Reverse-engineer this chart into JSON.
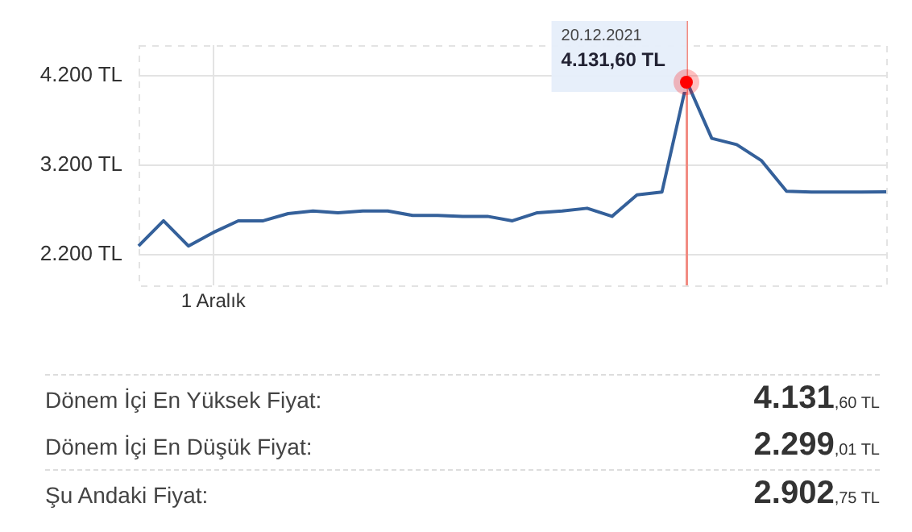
{
  "chart_data": {
    "type": "line",
    "categories": [
      null,
      null,
      null,
      "1 Aralık",
      null,
      null,
      null,
      null,
      null,
      null,
      null,
      null,
      null,
      null,
      null,
      null,
      null,
      null,
      null,
      null,
      null,
      null,
      null,
      null,
      null,
      null,
      null,
      null,
      null,
      null,
      null
    ],
    "series": [
      {
        "color": "#34609a",
        "values": [
          2300,
          2580,
          2299.01,
          2450,
          2580,
          2580,
          2660,
          2690,
          2670,
          2690,
          2690,
          2640,
          2640,
          2630,
          2630,
          2580,
          2670,
          2690,
          2720,
          2630,
          2870,
          2900,
          4131.6,
          3500,
          3430,
          3250,
          2910,
          2900,
          2900,
          2900,
          2902.75
        ]
      }
    ],
    "ylim": [
      1860,
      4540
    ],
    "yticks": [
      {
        "value": 2200,
        "label": "2.200 TL"
      },
      {
        "value": 3200,
        "label": "3.200 TL"
      },
      {
        "value": 4200,
        "label": "4.200 TL"
      }
    ],
    "grid": true,
    "legend": false,
    "marker": "none",
    "line_style": "solid",
    "annotations": [
      "20.12.2021",
      "4.131,60 TL",
      "Dönem İçi En Yüksek Fiyat:",
      "4.131,60 TL",
      "Dönem İçi En Düşük Fiyat:",
      "2.299,01 TL",
      "Şu Andaki Fiyat:",
      "2.902,75 TL"
    ]
  }
}
